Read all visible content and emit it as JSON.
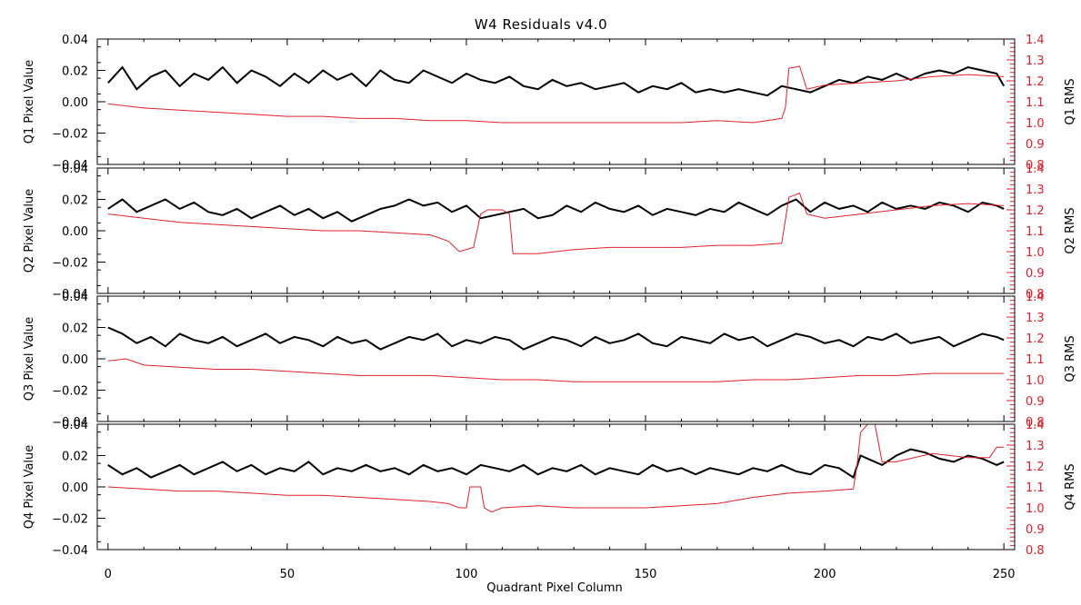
{
  "chart_data": {
    "type": "line",
    "title": "W4 Residuals v4.0",
    "xlabel": "Quadrant Pixel Column",
    "xlim": [
      -3,
      253
    ],
    "x_ticks": [
      0,
      50,
      100,
      150,
      200,
      250
    ],
    "y_left_lim": [
      -0.04,
      0.04
    ],
    "y_left_ticks": [
      "0.04",
      "0.02",
      "0.00",
      "−0.02",
      "−0.04"
    ],
    "y_left_tick_values": [
      0.04,
      0.02,
      0.0,
      -0.02,
      -0.04
    ],
    "y_right_lim": [
      0.8,
      1.4
    ],
    "y_right_ticks": [
      "1.4",
      "1.3",
      "1.2",
      "1.1",
      "1.0",
      "0.9",
      "0.8"
    ],
    "y_right_tick_values": [
      1.4,
      1.3,
      1.2,
      1.1,
      1.0,
      0.9,
      0.8
    ],
    "colors": {
      "pixel_value": "#000000",
      "rms": "#e0202c"
    },
    "panels": [
      {
        "ylabel": "Q1 Pixel Value",
        "ylabel_right": "Q1 RMS",
        "series": [
          {
            "x": [
              0,
              4,
              8,
              12,
              16,
              20,
              24,
              28,
              32,
              36,
              40,
              44,
              48,
              52,
              56,
              60,
              64,
              68,
              72,
              76,
              80,
              84,
              88,
              92,
              96,
              100,
              104,
              108,
              112,
              116,
              120,
              124,
              128,
              132,
              136,
              140,
              144,
              148,
              152,
              156,
              160,
              164,
              168,
              172,
              176,
              180,
              184,
              188,
              192,
              196,
              200,
              204,
              208,
              212,
              216,
              220,
              224,
              228,
              232,
              236,
              240,
              244,
              248,
              250
            ],
            "y": [
              0.012,
              0.022,
              0.008,
              0.016,
              0.02,
              0.01,
              0.018,
              0.014,
              0.022,
              0.012,
              0.02,
              0.016,
              0.01,
              0.018,
              0.012,
              0.02,
              0.014,
              0.018,
              0.01,
              0.02,
              0.014,
              0.012,
              0.02,
              0.016,
              0.012,
              0.018,
              0.014,
              0.012,
              0.016,
              0.01,
              0.008,
              0.014,
              0.01,
              0.012,
              0.008,
              0.01,
              0.012,
              0.006,
              0.01,
              0.008,
              0.012,
              0.006,
              0.008,
              0.006,
              0.008,
              0.006,
              0.004,
              0.01,
              0.008,
              0.006,
              0.01,
              0.014,
              0.012,
              0.016,
              0.014,
              0.018,
              0.014,
              0.018,
              0.02,
              0.018,
              0.022,
              0.02,
              0.018,
              0.01
            ]
          },
          {
            "x": [
              0,
              10,
              20,
              30,
              40,
              50,
              60,
              70,
              80,
              90,
              100,
              110,
              120,
              130,
              140,
              150,
              160,
              170,
              180,
              188,
              189,
              190,
              193,
              195,
              200,
              210,
              220,
              230,
              240,
              250
            ],
            "y": [
              1.09,
              1.07,
              1.06,
              1.05,
              1.04,
              1.03,
              1.03,
              1.02,
              1.02,
              1.01,
              1.01,
              1.0,
              1.0,
              1.0,
              1.0,
              1.0,
              1.0,
              1.01,
              1.0,
              1.02,
              1.07,
              1.26,
              1.27,
              1.16,
              1.18,
              1.19,
              1.2,
              1.22,
              1.23,
              1.22
            ]
          }
        ]
      },
      {
        "ylabel": "Q2 Pixel Value",
        "ylabel_right": "Q2 RMS",
        "series": [
          {
            "x": [
              0,
              4,
              8,
              12,
              16,
              20,
              24,
              28,
              32,
              36,
              40,
              44,
              48,
              52,
              56,
              60,
              64,
              68,
              72,
              76,
              80,
              84,
              88,
              92,
              96,
              100,
              104,
              108,
              112,
              116,
              120,
              124,
              128,
              132,
              136,
              140,
              144,
              148,
              152,
              156,
              160,
              164,
              168,
              172,
              176,
              180,
              184,
              188,
              192,
              196,
              200,
              204,
              208,
              212,
              216,
              220,
              224,
              228,
              232,
              236,
              240,
              244,
              248,
              250
            ],
            "y": [
              0.014,
              0.02,
              0.012,
              0.016,
              0.02,
              0.014,
              0.018,
              0.012,
              0.01,
              0.014,
              0.008,
              0.012,
              0.016,
              0.01,
              0.014,
              0.008,
              0.012,
              0.006,
              0.01,
              0.014,
              0.016,
              0.02,
              0.016,
              0.018,
              0.012,
              0.016,
              0.008,
              0.01,
              0.012,
              0.014,
              0.008,
              0.01,
              0.016,
              0.012,
              0.018,
              0.014,
              0.012,
              0.016,
              0.01,
              0.014,
              0.012,
              0.01,
              0.014,
              0.012,
              0.018,
              0.014,
              0.01,
              0.016,
              0.02,
              0.012,
              0.018,
              0.014,
              0.016,
              0.012,
              0.018,
              0.014,
              0.016,
              0.014,
              0.018,
              0.016,
              0.012,
              0.018,
              0.016,
              0.014
            ]
          },
          {
            "x": [
              0,
              10,
              20,
              30,
              40,
              50,
              60,
              70,
              80,
              90,
              95,
              98,
              102,
              104,
              106,
              110,
              112,
              113,
              120,
              130,
              140,
              150,
              160,
              170,
              180,
              188,
              189,
              190,
              193,
              195,
              200,
              210,
              220,
              230,
              240,
              250
            ],
            "y": [
              1.18,
              1.16,
              1.14,
              1.13,
              1.12,
              1.11,
              1.1,
              1.1,
              1.09,
              1.08,
              1.05,
              1.0,
              1.02,
              1.18,
              1.2,
              1.2,
              1.18,
              0.99,
              0.99,
              1.01,
              1.02,
              1.02,
              1.02,
              1.03,
              1.03,
              1.04,
              1.15,
              1.26,
              1.28,
              1.18,
              1.16,
              1.18,
              1.2,
              1.22,
              1.23,
              1.22
            ]
          }
        ]
      },
      {
        "ylabel": "Q3 Pixel Value",
        "ylabel_right": "Q3 RMS",
        "series": [
          {
            "x": [
              0,
              4,
              8,
              12,
              16,
              20,
              24,
              28,
              32,
              36,
              40,
              44,
              48,
              52,
              56,
              60,
              64,
              68,
              72,
              76,
              80,
              84,
              88,
              92,
              96,
              100,
              104,
              108,
              112,
              116,
              120,
              124,
              128,
              132,
              136,
              140,
              144,
              148,
              152,
              156,
              160,
              164,
              168,
              172,
              176,
              180,
              184,
              188,
              192,
              196,
              200,
              204,
              208,
              212,
              216,
              220,
              224,
              228,
              232,
              236,
              240,
              244,
              248,
              250
            ],
            "y": [
              0.02,
              0.016,
              0.01,
              0.014,
              0.008,
              0.016,
              0.012,
              0.01,
              0.014,
              0.008,
              0.012,
              0.016,
              0.01,
              0.014,
              0.012,
              0.008,
              0.014,
              0.01,
              0.012,
              0.006,
              0.01,
              0.014,
              0.012,
              0.016,
              0.008,
              0.012,
              0.01,
              0.014,
              0.012,
              0.006,
              0.01,
              0.014,
              0.012,
              0.008,
              0.014,
              0.01,
              0.012,
              0.016,
              0.01,
              0.008,
              0.014,
              0.012,
              0.01,
              0.016,
              0.012,
              0.014,
              0.008,
              0.012,
              0.016,
              0.014,
              0.01,
              0.012,
              0.008,
              0.014,
              0.012,
              0.016,
              0.01,
              0.012,
              0.014,
              0.008,
              0.012,
              0.016,
              0.014,
              0.012
            ]
          },
          {
            "x": [
              0,
              5,
              10,
              20,
              30,
              40,
              50,
              60,
              70,
              80,
              90,
              100,
              110,
              120,
              130,
              140,
              150,
              160,
              170,
              180,
              190,
              200,
              210,
              220,
              230,
              240,
              250
            ],
            "y": [
              1.09,
              1.1,
              1.07,
              1.06,
              1.05,
              1.05,
              1.04,
              1.03,
              1.02,
              1.02,
              1.02,
              1.01,
              1.0,
              1.0,
              0.99,
              0.99,
              0.99,
              0.99,
              0.99,
              1.0,
              1.0,
              1.01,
              1.02,
              1.02,
              1.03,
              1.03,
              1.03
            ]
          }
        ]
      },
      {
        "ylabel": "Q4 Pixel Value",
        "ylabel_right": "Q4 RMS",
        "series": [
          {
            "x": [
              0,
              4,
              8,
              12,
              16,
              20,
              24,
              28,
              32,
              36,
              40,
              44,
              48,
              52,
              56,
              60,
              64,
              68,
              72,
              76,
              80,
              84,
              88,
              92,
              96,
              100,
              104,
              108,
              112,
              116,
              120,
              124,
              128,
              132,
              136,
              140,
              144,
              148,
              152,
              156,
              160,
              164,
              168,
              172,
              176,
              180,
              184,
              188,
              192,
              196,
              200,
              204,
              208,
              210,
              212,
              216,
              220,
              224,
              228,
              232,
              236,
              240,
              244,
              248,
              250
            ],
            "y": [
              0.014,
              0.008,
              0.012,
              0.006,
              0.01,
              0.014,
              0.008,
              0.012,
              0.016,
              0.01,
              0.014,
              0.008,
              0.012,
              0.01,
              0.016,
              0.008,
              0.012,
              0.01,
              0.014,
              0.01,
              0.012,
              0.008,
              0.014,
              0.01,
              0.012,
              0.008,
              0.014,
              0.012,
              0.01,
              0.014,
              0.008,
              0.012,
              0.01,
              0.014,
              0.008,
              0.012,
              0.01,
              0.008,
              0.014,
              0.01,
              0.012,
              0.008,
              0.012,
              0.01,
              0.008,
              0.012,
              0.01,
              0.014,
              0.01,
              0.008,
              0.014,
              0.012,
              0.006,
              0.02,
              0.018,
              0.014,
              0.02,
              0.024,
              0.022,
              0.018,
              0.016,
              0.02,
              0.018,
              0.014,
              0.016
            ]
          },
          {
            "x": [
              0,
              10,
              20,
              30,
              40,
              50,
              60,
              70,
              80,
              90,
              95,
              98,
              100,
              101,
              104,
              105,
              107,
              110,
              120,
              130,
              140,
              150,
              160,
              170,
              180,
              190,
              200,
              208,
              209,
              210,
              212,
              214,
              216,
              220,
              230,
              240,
              246,
              248,
              250
            ],
            "y": [
              1.1,
              1.09,
              1.08,
              1.08,
              1.07,
              1.06,
              1.06,
              1.05,
              1.04,
              1.03,
              1.02,
              1.0,
              1.0,
              1.1,
              1.1,
              1.0,
              0.98,
              1.0,
              1.01,
              1.0,
              1.0,
              1.0,
              1.01,
              1.02,
              1.05,
              1.07,
              1.08,
              1.09,
              1.2,
              1.36,
              1.4,
              1.4,
              1.22,
              1.22,
              1.26,
              1.24,
              1.24,
              1.29,
              1.29
            ]
          }
        ]
      }
    ]
  }
}
